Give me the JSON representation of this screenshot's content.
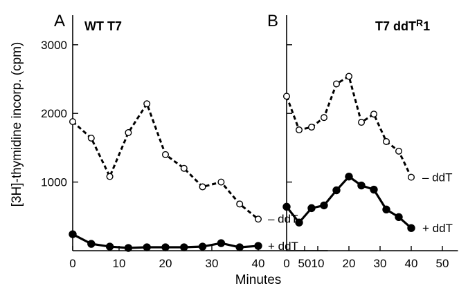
{
  "figure": {
    "shared_xlabel": "Minutes",
    "shared_ylabel": "[3H]-thymidine incorp. (cpm)"
  },
  "chart_data": [
    {
      "type": "line",
      "panel": "A",
      "title": "WT T7",
      "xlabel": "Minutes",
      "ylabel": "[3H]-thymidine incorp. (cpm)",
      "xlim": [
        0,
        55
      ],
      "ylim": [
        0,
        3350
      ],
      "x_ticks": [
        0,
        10,
        20,
        30,
        40,
        50
      ],
      "y_ticks": [
        1000,
        2000,
        3000
      ],
      "grid": false,
      "series": [
        {
          "name": "– ddT",
          "style": "dashed",
          "marker": "open-circle",
          "x": [
            0,
            4,
            8,
            12,
            16,
            20,
            24,
            28,
            32,
            36,
            40
          ],
          "y": [
            1880,
            1640,
            1080,
            1720,
            2140,
            1400,
            1200,
            930,
            1000,
            680,
            460
          ]
        },
        {
          "name": "+ ddT",
          "style": "solid",
          "marker": "filled-circle",
          "x": [
            0,
            4,
            8,
            12,
            16,
            20,
            24,
            28,
            32,
            36,
            40
          ],
          "y": [
            240,
            100,
            60,
            40,
            50,
            50,
            50,
            60,
            110,
            50,
            70
          ]
        }
      ]
    },
    {
      "type": "line",
      "panel": "B",
      "title": "T7 ddT",
      "title_superscript": "R",
      "title_suffix": "1",
      "xlabel": "Minutes",
      "ylabel": "",
      "xlim": [
        0,
        55
      ],
      "ylim": [
        0,
        3350
      ],
      "x_ticks": [
        0,
        10,
        20,
        30,
        40,
        50
      ],
      "y_ticks": [
        1000,
        2000,
        3000
      ],
      "grid": false,
      "series": [
        {
          "name": "– ddT",
          "style": "dashed",
          "marker": "open-circle",
          "x": [
            0,
            4,
            8,
            12,
            16,
            20,
            24,
            28,
            32,
            36,
            40
          ],
          "y": [
            2250,
            1760,
            1800,
            1940,
            2430,
            2540,
            1870,
            1990,
            1590,
            1450,
            1070
          ]
        },
        {
          "name": "+ ddT",
          "style": "solid",
          "marker": "filled-circle",
          "x": [
            0,
            4,
            8,
            12,
            16,
            20,
            24,
            28,
            32,
            36,
            40
          ],
          "y": [
            640,
            410,
            620,
            660,
            880,
            1080,
            950,
            890,
            600,
            490,
            330
          ]
        }
      ]
    }
  ]
}
